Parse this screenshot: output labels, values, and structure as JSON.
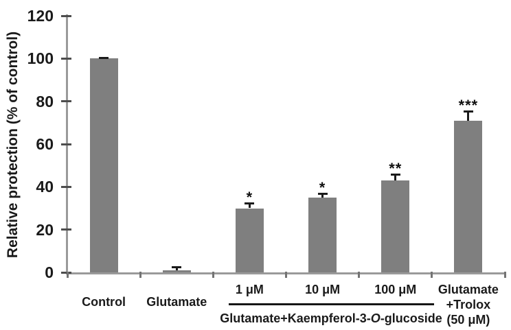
{
  "chart_data": {
    "type": "bar",
    "title": "",
    "ylabel": "Relative protection (% of control)",
    "xlabel": "",
    "ylim": [
      0,
      120
    ],
    "ytick_step": 20,
    "yticks": [
      0,
      20,
      40,
      60,
      80,
      100,
      120
    ],
    "grid": false,
    "legend": false,
    "bar_color": "#7f7f7f",
    "error_bar_color": "#1a1a1a",
    "axis_color": "#9a9a9a",
    "categories": [
      {
        "lines": [
          "Control"
        ],
        "in_group": false
      },
      {
        "lines": [
          "Glutamate"
        ],
        "in_group": false
      },
      {
        "lines": [
          "1 μM"
        ],
        "in_group": true
      },
      {
        "lines": [
          "10 μM"
        ],
        "in_group": true
      },
      {
        "lines": [
          "100 μM"
        ],
        "in_group": true
      },
      {
        "lines": [
          "Glutamate",
          "+Trolox",
          "(50 μM)"
        ],
        "in_group": false
      }
    ],
    "values": [
      100,
      1,
      30,
      35,
      43,
      71
    ],
    "errors": [
      0.5,
      1.5,
      2.5,
      2,
      3,
      4.5
    ],
    "significance": [
      "",
      "",
      "*",
      "*",
      "**",
      "***"
    ],
    "group_bracket": {
      "label_prefix": "Glutamate+Kaempferol-3-",
      "label_italic": "O",
      "label_suffix": "-glucoside",
      "from_category": "1 μM",
      "to_category": "100 μM"
    }
  }
}
